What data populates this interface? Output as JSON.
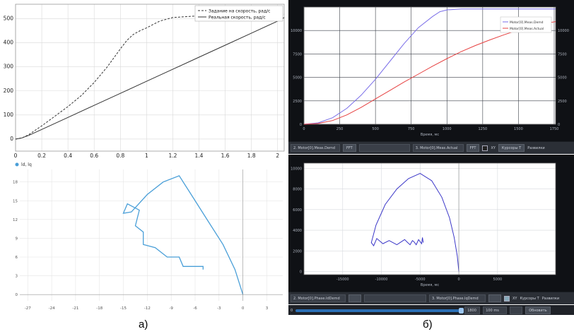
{
  "captions": {
    "left": "а)",
    "right": "б)"
  },
  "chart_data": [
    {
      "id": "speed",
      "type": "line",
      "xlim": [
        0,
        2.05
      ],
      "ylim": [
        -50,
        560
      ],
      "xticks": [
        "0",
        "0.2",
        "0.4",
        "0.6",
        "0.8",
        "1",
        "1.2",
        "1.4",
        "1.6",
        "1.8",
        "2"
      ],
      "yticks": [
        "0",
        "100",
        "200",
        "300",
        "400",
        "500"
      ],
      "grid": true,
      "legend": "top-right",
      "series": [
        {
          "name": "Задание на скорость, рад/с",
          "style": "dashed",
          "color": "#333333",
          "x": [
            0,
            0.05,
            0.1,
            0.2,
            0.3,
            0.4,
            0.5,
            0.6,
            0.7,
            0.8,
            0.85,
            0.9,
            0.95,
            1.0,
            1.1,
            1.2,
            1.4,
            1.6,
            1.8,
            2.0,
            2.05
          ],
          "y": [
            0,
            5,
            18,
            55,
            95,
            135,
            180,
            235,
            300,
            375,
            410,
            435,
            450,
            462,
            490,
            505,
            512,
            515,
            517,
            518,
            518
          ]
        },
        {
          "name": "Реальная скорость, рад/с",
          "style": "solid",
          "color": "#333333",
          "x": [
            0,
            0.05,
            0.1,
            0.2,
            0.4,
            0.6,
            0.8,
            1.0,
            1.2,
            1.4,
            1.6,
            1.8,
            2.0,
            2.05
          ],
          "y": [
            0,
            5,
            15,
            40,
            90,
            140,
            190,
            240,
            290,
            340,
            390,
            440,
            490,
            505
          ]
        }
      ]
    },
    {
      "id": "hodograph",
      "type": "line",
      "xlim": [
        -28,
        5
      ],
      "ylim": [
        -1,
        20
      ],
      "xticks": [
        "-27",
        "-24",
        "-21",
        "-18",
        "-15",
        "-12",
        "-9",
        "-6",
        "-3",
        "0",
        "3"
      ],
      "xtick_values": [
        -27,
        -24,
        -21,
        -18,
        -15,
        -12,
        -9,
        -6,
        -3,
        0,
        3
      ],
      "yticks": [
        "0",
        "3",
        "6",
        "9",
        "12",
        "15",
        "18"
      ],
      "ytick_values": [
        0,
        3,
        6,
        9,
        12,
        15,
        18
      ],
      "grid": true,
      "legend": "top-left",
      "series": [
        {
          "name": "ld, lq",
          "color": "#4a9fd8",
          "x": [
            0,
            -1,
            -2.5,
            -4.5,
            -6.5,
            -8,
            -10,
            -12,
            -14,
            -15,
            -14.5,
            -13,
            -13.5,
            -12.5,
            -12.5,
            -11,
            -10,
            -9.5,
            -8,
            -7.5,
            -5,
            -5
          ],
          "y": [
            0,
            4,
            8,
            12,
            16,
            19,
            18,
            16,
            13.2,
            13,
            14.5,
            13.5,
            11,
            10,
            8,
            7.5,
            6.5,
            6,
            6,
            4.5,
            4.5,
            4
          ]
        }
      ]
    },
    {
      "id": "motor-speed",
      "type": "line",
      "xlim": [
        0,
        1760
      ],
      "ylim": [
        0,
        12500
      ],
      "xticks": [
        "0",
        "250",
        "500",
        "750",
        "1000",
        "1250",
        "1500",
        "1750"
      ],
      "xtick_values": [
        0,
        250,
        500,
        750,
        1000,
        1250,
        1500,
        1750
      ],
      "yticks": [
        "0",
        "2500",
        "5000",
        "7500",
        "10000"
      ],
      "ytick_values": [
        0,
        2500,
        5000,
        7500,
        10000
      ],
      "xlabel": "Время, мс",
      "grid": true,
      "legend": "top-right",
      "series": [
        {
          "name": "Motor[0].Meas.Demd",
          "color": "#7a6ee8",
          "x": [
            0,
            100,
            200,
            300,
            400,
            500,
            600,
            700,
            800,
            900,
            950,
            1000,
            1100,
            1200,
            1400,
            1600,
            1760
          ],
          "y": [
            0,
            150,
            700,
            1700,
            3100,
            4800,
            6700,
            8600,
            10300,
            11500,
            12000,
            12200,
            12300,
            12300,
            12300,
            12300,
            12300
          ]
        },
        {
          "name": "Motor[0].Meas.Actual",
          "color": "#e64040",
          "x": [
            0,
            100,
            200,
            300,
            400,
            500,
            600,
            700,
            800,
            900,
            1000,
            1100,
            1200,
            1300,
            1400,
            1500,
            1600,
            1700,
            1760
          ],
          "y": [
            0,
            80,
            400,
            1000,
            1800,
            2700,
            3600,
            4500,
            5350,
            6200,
            7000,
            7750,
            8400,
            9000,
            9550,
            10050,
            10450,
            10800,
            10950
          ]
        }
      ]
    },
    {
      "id": "current-hodograph",
      "type": "line",
      "xlim": [
        -20000,
        12500
      ],
      "ylim": [
        -300,
        10500
      ],
      "xticks": [
        "-15000",
        "-10000",
        "-5000",
        "0",
        "5000"
      ],
      "xtick_values": [
        -15000,
        -10000,
        -5000,
        0,
        5000
      ],
      "yticks": [
        "0",
        "2000",
        "4000",
        "6000",
        "8000",
        "10000"
      ],
      "ytick_values": [
        0,
        2000,
        4000,
        6000,
        8000,
        10000
      ],
      "xlabel": "Время, мс",
      "grid": true,
      "legend": "none",
      "series": [
        {
          "name": "Motor[0].Phase.IdDemd",
          "color": "#3a36c8",
          "x": [
            0,
            -200,
            -600,
            -1200,
            -2200,
            -3500,
            -5000,
            -6500,
            -8000,
            -9500,
            -10700,
            -11300,
            -11000,
            -10600,
            -9800,
            -9000,
            -8000,
            -7000,
            -6600,
            -6300,
            -6000,
            -5800,
            -5500,
            -5200,
            -4800,
            -4700,
            -4600
          ],
          "y": [
            0,
            1500,
            3300,
            5200,
            7200,
            8800,
            9500,
            9000,
            8000,
            6500,
            4500,
            2800,
            2500,
            3200,
            2700,
            3000,
            2600,
            3100,
            2800,
            2600,
            3000,
            2900,
            2600,
            3100,
            2700,
            3300,
            2800
          ]
        }
      ]
    }
  ],
  "toolbar_top": {
    "field1": "2. Motor[0].Meas.Demd",
    "btn1": "FFT",
    "field2": "3. Motor[0].Meas.Actual",
    "btn2": "FFT",
    "label_xy": "XY",
    "label_sync": "Курсоры Т",
    "label_reset": "Развилки"
  },
  "toolbar_bottom": {
    "field1": "2. Motor[0].Phase.IdDemd",
    "field2": "3. Motor[0].Phase.IqDemd",
    "label_xy": "XY",
    "label_sync": "Курсоры Т",
    "label_reset": "Развилки"
  },
  "statusbar": {
    "left": "0",
    "value1": "1800",
    "value2": "100 ms",
    "value3": "Обновить"
  }
}
